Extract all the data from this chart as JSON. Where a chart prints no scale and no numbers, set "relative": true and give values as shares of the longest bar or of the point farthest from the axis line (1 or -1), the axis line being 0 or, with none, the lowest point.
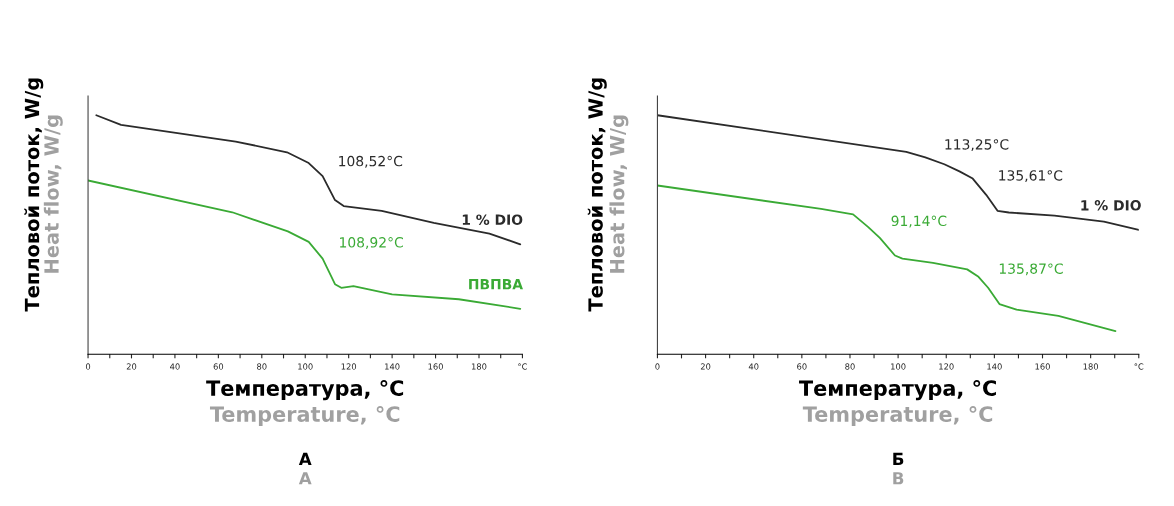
{
  "chart_data": [
    {
      "type": "line",
      "title": "А\nA",
      "xlabel": "Температура, °C\nTemperature, °C",
      "ylabel": "Тепловой поток, W/g\nHeat flow, W/g",
      "relative": true,
      "tick_labels": "x",
      "grid": false,
      "legend": false,
      "xlim": [
        0,
        200
      ],
      "xticks": [
        0,
        {
          "value": 10,
          "label": null
        },
        20,
        {
          "value": 30,
          "label": null
        },
        40,
        {
          "value": 50,
          "label": null
        },
        60,
        {
          "value": 70,
          "label": null
        },
        80,
        {
          "value": 90,
          "label": null
        },
        100,
        {
          "value": 110,
          "label": null
        },
        120,
        {
          "value": 130,
          "label": null
        },
        140,
        {
          "value": 150,
          "label": null
        },
        160,
        {
          "value": 170,
          "label": null
        },
        180,
        {
          "value": 190,
          "label": null
        },
        {
          "value": 200,
          "label": "°C"
        }
      ],
      "series": [
        {
          "name": "1 % DIO",
          "color": "#2b2b2b",
          "x": [
            3.8,
            15.2,
            68,
            91.6,
            101.6,
            108,
            113.7,
            117.7,
            135.2,
            159.2,
            184.8,
            199
          ],
          "values": [
            1.0,
            0.96,
            0.89,
            0.845,
            0.8,
            0.745,
            0.645,
            0.62,
            0.6,
            0.55,
            0.505,
            0.46
          ]
        },
        {
          "name": "ПВПВА",
          "color": "#3aaa35",
          "x": [
            0,
            66.4,
            92,
            101.6,
            108,
            113.7,
            116.6,
            122.2,
            140,
            170.7,
            199
          ],
          "values": [
            0.727,
            0.594,
            0.514,
            0.47,
            0.4,
            0.293,
            0.278,
            0.285,
            0.25,
            0.23,
            0.19
          ]
        }
      ],
      "annotations": [
        {
          "text": "108,52°C",
          "x": 108.52,
          "y": 0.74
        },
        {
          "text": "108,92°C",
          "x": 108.92,
          "y": 0.4
        }
      ]
    },
    {
      "type": "line",
      "title": "Б\nB",
      "xlabel": "Температура, °C\nTemperature, °C",
      "ylabel": "Тепловой поток, W/g\nHeat flow, W/g",
      "relative": true,
      "tick_labels": "x",
      "grid": false,
      "legend": false,
      "xlim": [
        0,
        200
      ],
      "xticks": [
        0,
        {
          "value": 10,
          "label": null
        },
        20,
        {
          "value": 30,
          "label": null
        },
        40,
        {
          "value": 50,
          "label": null
        },
        60,
        {
          "value": 70,
          "label": null
        },
        80,
        {
          "value": 90,
          "label": null
        },
        100,
        {
          "value": 110,
          "label": null
        },
        120,
        {
          "value": 130,
          "label": null
        },
        140,
        {
          "value": 150,
          "label": null
        },
        160,
        {
          "value": 170,
          "label": null
        },
        180,
        {
          "value": 190,
          "label": null
        },
        {
          "value": 200,
          "label": "°C"
        }
      ],
      "series": [
        {
          "name": "1 % DIO",
          "color": "#2b2b2b",
          "x": [
            0,
            103.4,
            111.3,
            119.2,
            125.5,
            131,
            136.6,
            141.3,
            146,
            165,
            185.5,
            200
          ],
          "values": [
            1.0,
            0.847,
            0.824,
            0.795,
            0.765,
            0.735,
            0.667,
            0.6,
            0.593,
            0.58,
            0.555,
            0.52
          ]
        },
        {
          "color": "#3aaa35",
          "x": [
            0,
            68,
            81.3,
            87.6,
            92.4,
            98.7,
            101.8,
            114.5,
            128.7,
            133.4,
            137.4,
            142.1,
            149.2,
            166.6,
            190.3
          ],
          "values": [
            0.706,
            0.608,
            0.585,
            0.532,
            0.487,
            0.413,
            0.4,
            0.382,
            0.355,
            0.324,
            0.278,
            0.21,
            0.187,
            0.16,
            0.097
          ]
        }
      ],
      "annotations": [
        {
          "text": "113,25°C",
          "x": 113.25,
          "y": 0.81
        },
        {
          "text": "135,61°C",
          "x": 135.61,
          "y": 0.68
        },
        {
          "text": "91,14°C",
          "x": 91.14,
          "y": 0.49
        },
        {
          "text": "135,87°C",
          "x": 135.87,
          "y": 0.29
        }
      ]
    }
  ]
}
